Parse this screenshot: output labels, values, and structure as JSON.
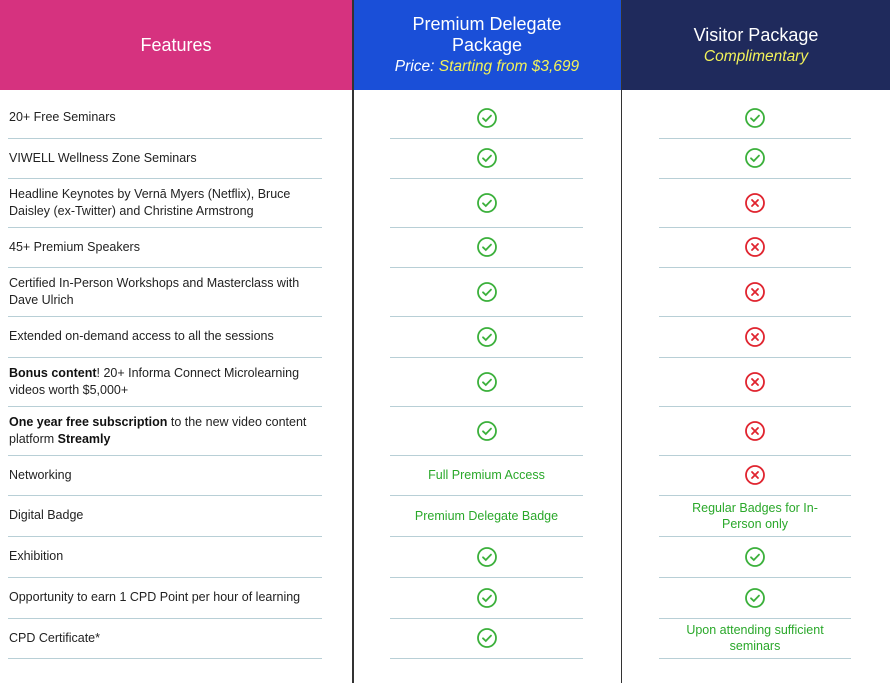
{
  "header": {
    "features": "Features",
    "premium": {
      "title": "Premium Delegate Package",
      "price_label": "Price:",
      "price": "Starting from $3,699"
    },
    "visitor": {
      "title": "Visitor Package",
      "subtitle": "Complimentary"
    }
  },
  "rows": [
    {
      "feature": [
        {
          "text": "20+ Free Seminars"
        }
      ],
      "premium": {
        "icon": "check"
      },
      "visitor": {
        "icon": "check"
      }
    },
    {
      "feature": [
        {
          "text": "VIWELL Wellness Zone Seminars"
        }
      ],
      "premium": {
        "icon": "check"
      },
      "visitor": {
        "icon": "check"
      }
    },
    {
      "feature": [
        {
          "text": "Headline Keynotes by Vernā Myers (Netflix), Bruce Daisley (ex-Twitter) and Christine Armstrong"
        }
      ],
      "premium": {
        "icon": "check"
      },
      "visitor": {
        "icon": "cross"
      }
    },
    {
      "feature": [
        {
          "text": "45+ Premium Speakers"
        }
      ],
      "premium": {
        "icon": "check"
      },
      "visitor": {
        "icon": "cross"
      }
    },
    {
      "feature": [
        {
          "text": "Certified In-Person Workshops and Masterclass with Dave Ulrich"
        }
      ],
      "premium": {
        "icon": "check"
      },
      "visitor": {
        "icon": "cross"
      }
    },
    {
      "feature": [
        {
          "text": "Extended on-demand access to all the sessions"
        }
      ],
      "premium": {
        "icon": "check"
      },
      "visitor": {
        "icon": "cross"
      }
    },
    {
      "feature": [
        {
          "text": "Bonus content",
          "bold": true
        },
        {
          "text": "! 20+ Informa Connect Microlearning videos worth $5,000+"
        }
      ],
      "premium": {
        "icon": "check"
      },
      "visitor": {
        "icon": "cross"
      }
    },
    {
      "feature": [
        {
          "text": "One year free subscription",
          "bold": true
        },
        {
          "text": " to the new video content platform "
        },
        {
          "text": "Streamly",
          "bold": true
        }
      ],
      "premium": {
        "icon": "check"
      },
      "visitor": {
        "icon": "cross"
      }
    },
    {
      "feature": [
        {
          "text": "Networking"
        }
      ],
      "premium": {
        "text": "Full Premium Access"
      },
      "visitor": {
        "icon": "cross"
      }
    },
    {
      "feature": [
        {
          "text": "Digital Badge"
        }
      ],
      "premium": {
        "text": "Premium Delegate Badge"
      },
      "visitor": {
        "text": "Regular Badges for In-Person only"
      }
    },
    {
      "feature": [
        {
          "text": "Exhibition"
        }
      ],
      "premium": {
        "icon": "check"
      },
      "visitor": {
        "icon": "check"
      }
    },
    {
      "feature": [
        {
          "text": "Opportunity to earn 1 CPD Point per hour of learning"
        }
      ],
      "premium": {
        "icon": "check"
      },
      "visitor": {
        "icon": "check"
      }
    },
    {
      "feature": [
        {
          "text": "CPD Certificate*"
        }
      ],
      "premium": {
        "icon": "check"
      },
      "visitor": {
        "text": "Upon attending sufficient seminars"
      }
    }
  ]
}
